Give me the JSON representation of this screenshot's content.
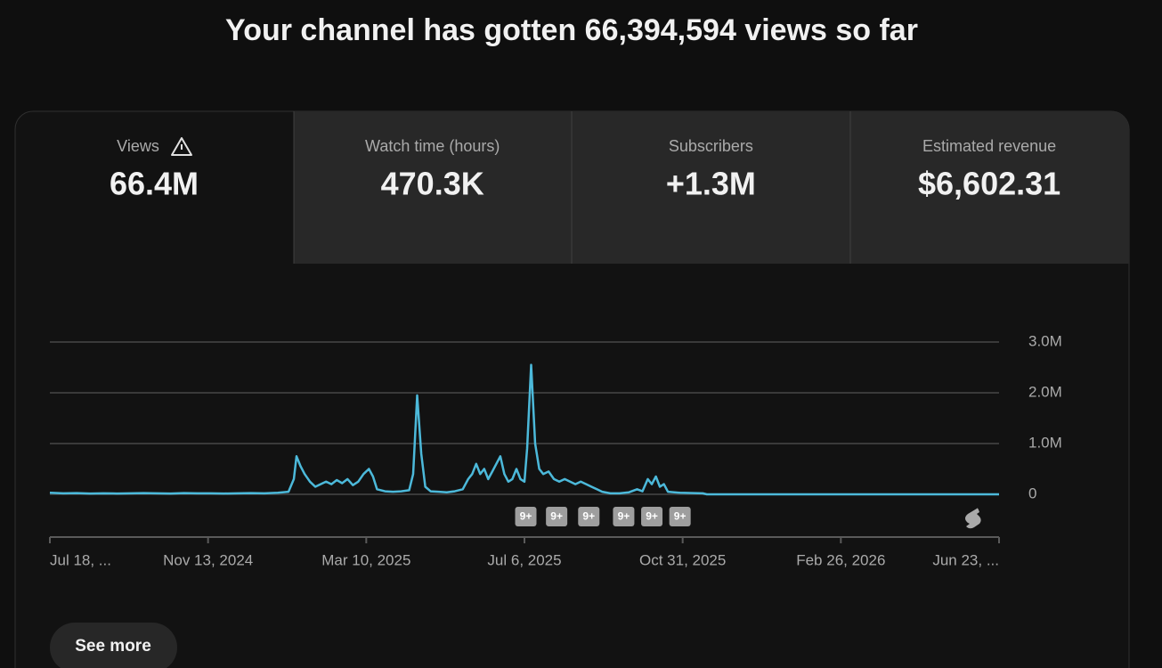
{
  "header": {
    "title": "Your channel has gotten 66,394,594 views so far"
  },
  "tabs": [
    {
      "label": "Views",
      "value": "66.4M"
    },
    {
      "label": "Watch time (hours)",
      "value": "470.3K"
    },
    {
      "label": "Subscribers",
      "value": "+1.3M"
    },
    {
      "label": "Estimated revenue",
      "value": "$6,602.31"
    }
  ],
  "chart_data": {
    "type": "line",
    "color": "#4cb9da",
    "grid": true,
    "xlim": [
      0,
      708
    ],
    "xticks": [
      {
        "value": 0,
        "label": "Jul 18, ..."
      },
      {
        "value": 118,
        "label": "Nov 13, 2024"
      },
      {
        "value": 236,
        "label": "Mar 10, 2025"
      },
      {
        "value": 354,
        "label": "Jul 6, 2025"
      },
      {
        "value": 472,
        "label": "Oct 31, 2025"
      },
      {
        "value": 590,
        "label": "Feb 26, 2026"
      },
      {
        "value": 708,
        "label": "Jun 23, ..."
      }
    ],
    "ylim": [
      0,
      3000000
    ],
    "yticks": [
      0,
      {
        "value": 1000000,
        "label": "1.0M"
      },
      {
        "value": 2000000,
        "label": "2.0M"
      },
      {
        "value": 3000000,
        "label": "3.0M"
      }
    ],
    "x": [
      0,
      10,
      20,
      30,
      40,
      50,
      60,
      70,
      80,
      90,
      100,
      110,
      120,
      130,
      140,
      150,
      160,
      170,
      178,
      182,
      184,
      187,
      190,
      194,
      198,
      202,
      206,
      210,
      214,
      218,
      222,
      226,
      230,
      234,
      238,
      241,
      244,
      250,
      256,
      262,
      268,
      271,
      274,
      277,
      280,
      284,
      290,
      296,
      302,
      308,
      312,
      315,
      318,
      321,
      324,
      327,
      330,
      333,
      336,
      339,
      342,
      345,
      348,
      351,
      354,
      356,
      359,
      362,
      365,
      368,
      372,
      376,
      380,
      384,
      388,
      392,
      396,
      400,
      404,
      408,
      412,
      418,
      425,
      432,
      438,
      442,
      446,
      449,
      452,
      455,
      458,
      461,
      470,
      480,
      487,
      490,
      708
    ],
    "values": [
      30000,
      20000,
      25000,
      15000,
      20000,
      15000,
      20000,
      25000,
      20000,
      15000,
      25000,
      20000,
      20000,
      15000,
      20000,
      25000,
      20000,
      30000,
      50000,
      300000,
      750000,
      550000,
      400000,
      250000,
      150000,
      200000,
      250000,
      200000,
      280000,
      220000,
      300000,
      180000,
      250000,
      400000,
      500000,
      350000,
      100000,
      60000,
      50000,
      60000,
      80000,
      400000,
      1950000,
      800000,
      150000,
      60000,
      50000,
      40000,
      60000,
      100000,
      300000,
      400000,
      600000,
      400000,
      500000,
      300000,
      450000,
      600000,
      750000,
      400000,
      250000,
      300000,
      500000,
      300000,
      250000,
      900000,
      2550000,
      1000000,
      500000,
      400000,
      450000,
      300000,
      250000,
      300000,
      250000,
      200000,
      250000,
      200000,
      150000,
      100000,
      50000,
      20000,
      20000,
      40000,
      100000,
      60000,
      300000,
      200000,
      350000,
      150000,
      200000,
      50000,
      30000,
      25000,
      20000,
      0,
      0
    ],
    "markers": [
      {
        "x": 355,
        "label": "9+"
      },
      {
        "x": 378,
        "label": "9+"
      },
      {
        "x": 402,
        "label": "9+"
      },
      {
        "x": 428,
        "label": "9+"
      },
      {
        "x": 449,
        "label": "9+"
      },
      {
        "x": 470,
        "label": "9+"
      }
    ]
  },
  "button": {
    "label": "See more"
  }
}
